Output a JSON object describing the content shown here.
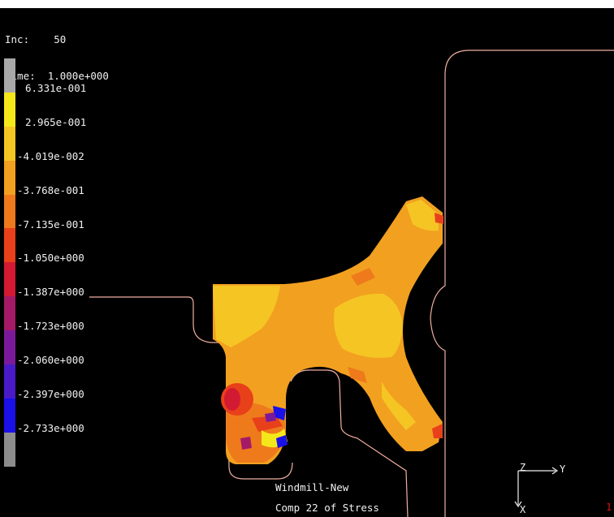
{
  "header": {
    "inc_label": "Inc:",
    "inc_value": "50",
    "time_label": "Time:",
    "time_value": "1.000e+000"
  },
  "legend": {
    "colors": [
      "#a8a8a8",
      "#f5e81a",
      "#f5c524",
      "#f2a020",
      "#ee7a1c",
      "#e8401a",
      "#d21a32",
      "#a51a66",
      "#7a1a9a",
      "#4a1ac8",
      "#1a10e8",
      "#8c8c8c"
    ],
    "labels": [
      "6.331e-001",
      "2.965e-001",
      "-4.019e-002",
      "-3.768e-001",
      "-7.135e-001",
      "-1.050e+000",
      "-1.387e+000",
      "-1.723e+000",
      "-2.060e+000",
      "-2.397e+000",
      "-2.733e+000"
    ]
  },
  "captions": {
    "model_name": "Windmill-New",
    "result_name": "Comp 22 of Stress"
  },
  "triad": {
    "z_label": "Z",
    "y_label": "Y",
    "x_label": "X"
  },
  "corner_mark": "1",
  "colors": {
    "background": "#000000",
    "outline": "#f0b0a0",
    "part_base": "#f2a020",
    "part_light": "#f5c524"
  }
}
